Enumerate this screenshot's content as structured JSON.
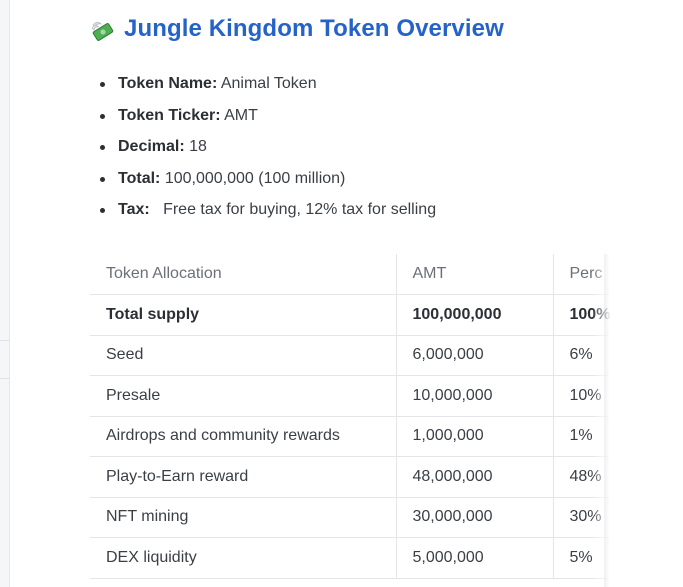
{
  "doc": {
    "title": "Jungle Kingdom Token Overview",
    "title_icon": "money-with-wings-icon",
    "colors": {
      "title": "#2563c9",
      "money_green": "#4caf50",
      "wing": "#d9dde3"
    }
  },
  "facts": [
    {
      "key": "Token Name:",
      "value": "Animal Token"
    },
    {
      "key": "Token Ticker:",
      "value": "AMT"
    },
    {
      "key": "Decimal:",
      "value": "18"
    },
    {
      "key": "Total:",
      "value": "100,000,000 (100 million)"
    },
    {
      "key": "Tax:",
      "value": "Free tax for buying, 12% tax for selling"
    }
  ],
  "table": {
    "headers": [
      "Token Allocation",
      "AMT",
      "Perc"
    ],
    "rows": [
      [
        "Total supply",
        "100,000,000",
        "100%"
      ],
      [
        "Seed",
        "6,000,000",
        "6%"
      ],
      [
        "Presale",
        "10,000,000",
        "10%"
      ],
      [
        "Airdrops and community rewards",
        "1,000,000",
        "1%"
      ],
      [
        "Play-to-Earn reward",
        "48,000,000",
        "48%"
      ],
      [
        "NFT mining",
        "30,000,000",
        "30%"
      ],
      [
        "DEX liquidity",
        "5,000,000",
        "5%"
      ]
    ]
  }
}
